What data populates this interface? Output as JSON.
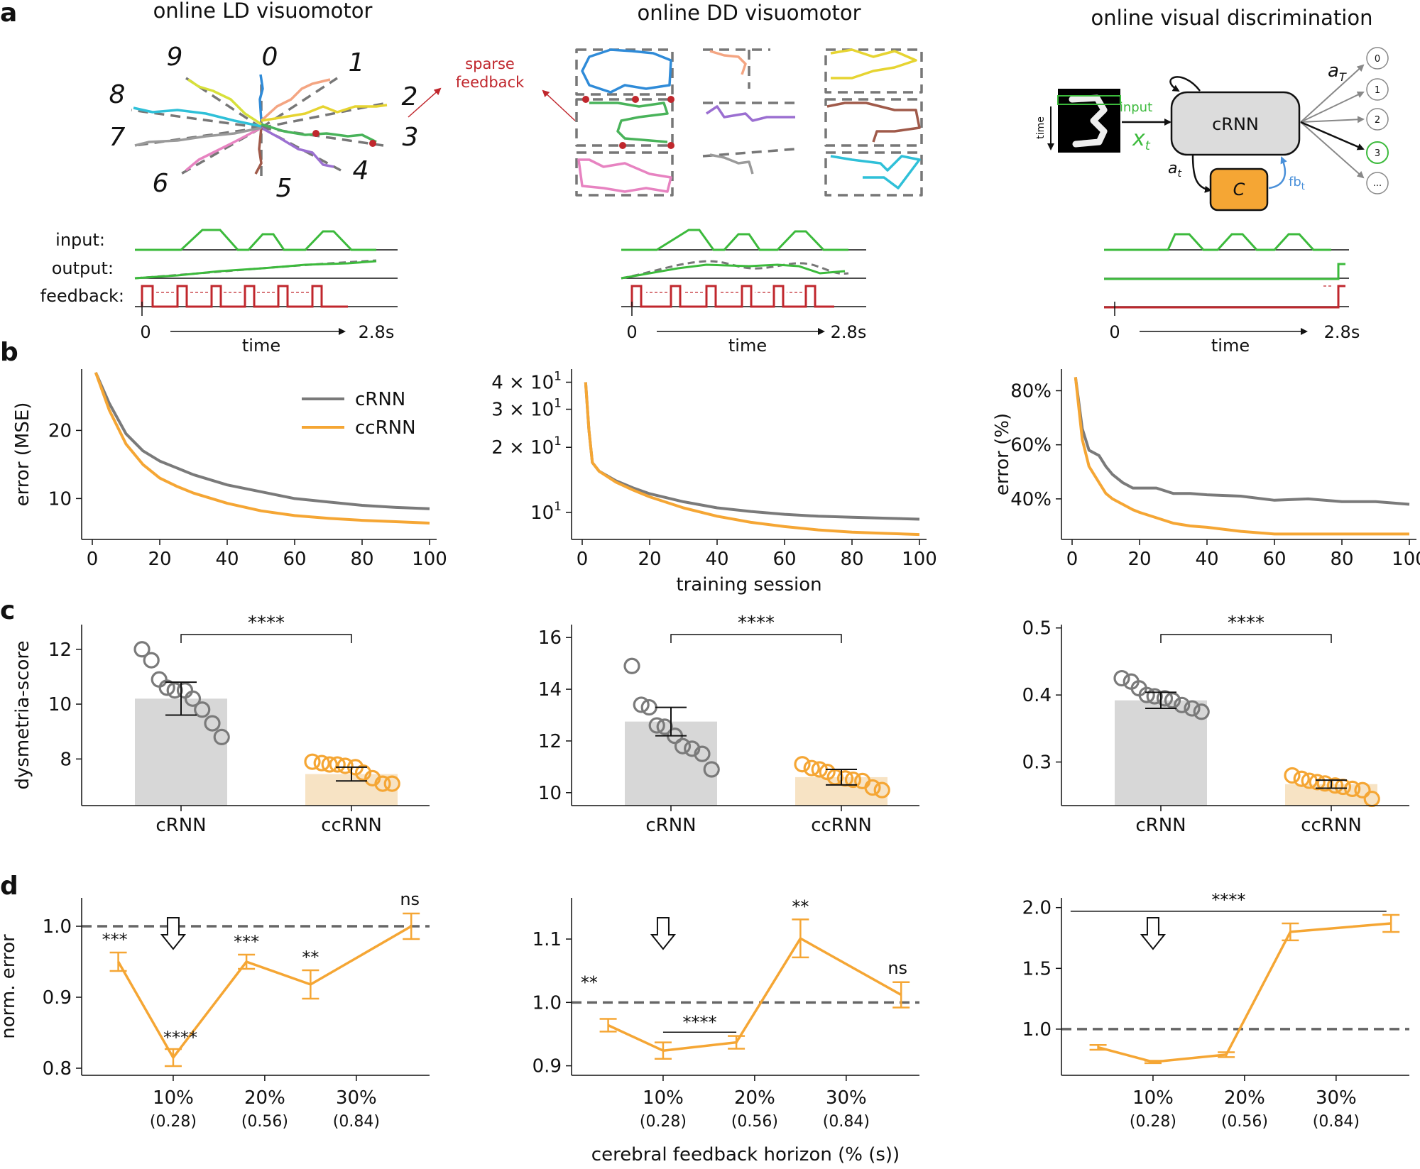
{
  "colors": {
    "crnn": "#7a7a7a",
    "ccrnn": "#f5a634",
    "feedback": "#c0272d",
    "input": "#3cba3c",
    "output": "#3cba3c",
    "cblock": "#f5a634"
  },
  "panel_letters": {
    "a": "a",
    "b": "b",
    "c": "c",
    "d": "d"
  },
  "row_a": {
    "titles": [
      "online LD visuomotor",
      "online DD visuomotor",
      "online visual discrimination"
    ],
    "digits": [
      "0",
      "1",
      "2",
      "3",
      "4",
      "5",
      "6",
      "7",
      "8",
      "9"
    ],
    "sparse_feedback": [
      "sparse",
      "feedback"
    ],
    "timeline_labels": {
      "input": "input:",
      "output": "output:",
      "feedback": "feedback:",
      "start": "0",
      "end": "2.8s",
      "time": "time"
    },
    "schematic": {
      "crnn": "cRNN",
      "input": "input",
      "x_t": "x",
      "x_sub": "t",
      "a_T": "a",
      "a_T_sub": "T",
      "a_t": "a",
      "a_t_sub": "t",
      "c": "C",
      "fb": "fb",
      "fb_sub": "t",
      "time": "time",
      "outputs": [
        "0",
        "1",
        "2",
        "3",
        "..."
      ]
    }
  },
  "chart_data": [
    {
      "id": "b1",
      "type": "line",
      "ylabel": "error (MSE)",
      "xlabel": "",
      "xlim": [
        0,
        100
      ],
      "ylim": [
        4,
        29
      ],
      "xticks": [
        0,
        20,
        40,
        60,
        80,
        100
      ],
      "yticks": [
        10,
        20
      ],
      "legend": [
        "cRNN",
        "ccRNN"
      ],
      "x": [
        1,
        5,
        10,
        15,
        20,
        25,
        30,
        40,
        50,
        60,
        70,
        80,
        90,
        100
      ],
      "series": [
        {
          "name": "cRNN",
          "values": [
            28.5,
            24,
            19.5,
            17,
            15.5,
            14.5,
            13.5,
            12,
            11,
            10,
            9.5,
            9,
            8.7,
            8.5
          ]
        },
        {
          "name": "ccRNN",
          "values": [
            28.5,
            23,
            18,
            15,
            13,
            11.8,
            10.8,
            9.3,
            8.2,
            7.5,
            7.1,
            6.8,
            6.6,
            6.4
          ]
        }
      ]
    },
    {
      "id": "b2",
      "type": "line",
      "ylabel": "",
      "xlabel": "training session",
      "scale": "log",
      "xlim": [
        0,
        100
      ],
      "ylim": [
        7.5,
        46
      ],
      "xticks": [
        0,
        20,
        40,
        60,
        80,
        100
      ],
      "ytick_labels": [
        {
          "value": 40,
          "base": "4 × 10",
          "exp": "1"
        },
        {
          "value": 30,
          "base": "3 × 10",
          "exp": "1"
        },
        {
          "value": 20,
          "base": "2 × 10",
          "exp": "1"
        },
        {
          "value": 10,
          "base": "10",
          "exp": "1"
        }
      ],
      "x": [
        1,
        2,
        3,
        5,
        10,
        15,
        20,
        30,
        40,
        50,
        60,
        70,
        80,
        90,
        100
      ],
      "series": [
        {
          "name": "cRNN",
          "values": [
            40,
            24,
            17,
            15.5,
            14,
            13,
            12.2,
            11.2,
            10.5,
            10.1,
            9.8,
            9.6,
            9.5,
            9.4,
            9.3
          ]
        },
        {
          "name": "ccRNN",
          "values": [
            40,
            24,
            17,
            15.5,
            13.8,
            12.7,
            11.8,
            10.5,
            9.6,
            9,
            8.6,
            8.3,
            8.1,
            8,
            7.9
          ]
        }
      ]
    },
    {
      "id": "b3",
      "type": "line",
      "ylabel": "error (%)",
      "xlabel": "",
      "xlim": [
        0,
        100
      ],
      "ylim": [
        25,
        88
      ],
      "xticks": [
        0,
        20,
        40,
        60,
        80,
        100
      ],
      "yticks": [
        40,
        60,
        80
      ],
      "ytick_format": "%",
      "x": [
        1,
        3,
        5,
        8,
        10,
        12,
        15,
        18,
        20,
        25,
        30,
        35,
        40,
        50,
        60,
        70,
        80,
        90,
        100
      ],
      "series": [
        {
          "name": "cRNN",
          "values": [
            85,
            66,
            58,
            56,
            52,
            49,
            46,
            44,
            44,
            44,
            42,
            42,
            41.5,
            41,
            39.5,
            40,
            39,
            39,
            38
          ]
        },
        {
          "name": "ccRNN",
          "values": [
            85,
            62,
            52,
            46,
            42,
            40,
            38,
            36,
            35,
            33,
            31,
            30,
            29.5,
            28,
            27,
            27,
            27,
            27,
            27
          ]
        }
      ]
    },
    {
      "id": "c1",
      "type": "bar",
      "ylabel": "dysmetria-score",
      "categories": [
        "cRNN",
        "ccRNN"
      ],
      "values": [
        10.2,
        7.45
      ],
      "err": [
        0.6,
        0.25
      ],
      "ylim": [
        6.3,
        12.9
      ],
      "yticks": [
        8,
        10,
        12
      ],
      "sig": "****",
      "points": [
        [
          12.0,
          11.6,
          10.9,
          10.6,
          10.5,
          10.5,
          10.2,
          9.8,
          9.3,
          8.8
        ],
        [
          7.9,
          7.85,
          7.8,
          7.8,
          7.75,
          7.7,
          7.5,
          7.3,
          7.1,
          7.1
        ]
      ]
    },
    {
      "id": "c2",
      "type": "bar",
      "ylabel": "",
      "categories": [
        "cRNN",
        "ccRNN"
      ],
      "values": [
        12.75,
        10.6
      ],
      "err": [
        0.55,
        0.3
      ],
      "ylim": [
        9.5,
        16.5
      ],
      "yticks": [
        10,
        12,
        14,
        16
      ],
      "sig": "****",
      "points": [
        [
          14.9,
          13.4,
          13.3,
          12.6,
          12.55,
          12.2,
          11.8,
          11.7,
          11.5,
          10.9
        ],
        [
          11.1,
          10.95,
          10.9,
          10.8,
          10.6,
          10.55,
          10.5,
          10.45,
          10.2,
          10.1
        ]
      ]
    },
    {
      "id": "c3",
      "type": "bar",
      "ylabel": "",
      "categories": [
        "cRNN",
        "ccRNN"
      ],
      "values": [
        0.392,
        0.267
      ],
      "err": [
        0.012,
        0.006
      ],
      "ylim": [
        0.235,
        0.505
      ],
      "yticks": [
        0.3,
        0.4,
        0.5
      ],
      "sig": "****",
      "points": [
        [
          0.425,
          0.42,
          0.41,
          0.4,
          0.398,
          0.395,
          0.392,
          0.385,
          0.38,
          0.375
        ],
        [
          0.28,
          0.275,
          0.272,
          0.27,
          0.268,
          0.265,
          0.263,
          0.26,
          0.258,
          0.245
        ]
      ]
    },
    {
      "id": "d1",
      "type": "line",
      "ylabel": "norm. error",
      "xlabel": "",
      "ylim": [
        0.79,
        1.04
      ],
      "yticks": [
        0.8,
        0.9,
        1.0
      ],
      "x": [
        0.04,
        0.1,
        0.18,
        0.25,
        0.36
      ],
      "values": [
        0.95,
        0.815,
        0.95,
        0.918,
        1.0
      ],
      "err": [
        0.013,
        0.012,
        0.01,
        0.02,
        0.018
      ],
      "xtick_pos": [
        0.1,
        0.2,
        0.3
      ],
      "xticks": [
        "10%",
        "20%",
        "30%"
      ],
      "xticks_sub": [
        "(0.28)",
        "(0.56)",
        "(0.84)"
      ],
      "sig": [
        "***",
        "****",
        "***",
        "**",
        "ns"
      ],
      "baseline": 1.0,
      "arrow_x": 0.1
    },
    {
      "id": "d2",
      "type": "line",
      "ylabel": "",
      "xlabel": "cerebral feedback horizon (% (s))",
      "ylim": [
        0.885,
        1.165
      ],
      "yticks": [
        0.9,
        1.0,
        1.1
      ],
      "x": [
        0.04,
        0.1,
        0.18,
        0.25,
        0.36
      ],
      "values": [
        0.964,
        0.924,
        0.937,
        1.101,
        1.012
      ],
      "err": [
        0.01,
        0.013,
        0.01,
        0.03,
        0.02
      ],
      "xtick_pos": [
        0.1,
        0.2,
        0.3
      ],
      "xticks": [
        "10%",
        "20%",
        "30%"
      ],
      "xticks_sub": [
        "(0.28)",
        "(0.56)",
        "(0.84)"
      ],
      "sig_labels": [
        "**",
        "****",
        "**",
        "ns"
      ],
      "baseline": 1.0,
      "arrow_x": 0.1
    },
    {
      "id": "d3",
      "type": "line",
      "ylabel": "",
      "xlabel": "",
      "ylim": [
        0.62,
        2.08
      ],
      "yticks": [
        1.0,
        1.5,
        2.0
      ],
      "x": [
        0.04,
        0.1,
        0.18,
        0.25,
        0.36
      ],
      "values": [
        0.85,
        0.73,
        0.79,
        1.8,
        1.87
      ],
      "err": [
        0.02,
        0.01,
        0.02,
        0.07,
        0.07
      ],
      "xtick_pos": [
        0.1,
        0.2,
        0.3
      ],
      "xticks": [
        "10%",
        "20%",
        "30%"
      ],
      "xticks_sub": [
        "(0.28)",
        "(0.56)",
        "(0.84)"
      ],
      "sig": "****",
      "baseline": 1.0,
      "arrow_x": 0.1
    }
  ]
}
